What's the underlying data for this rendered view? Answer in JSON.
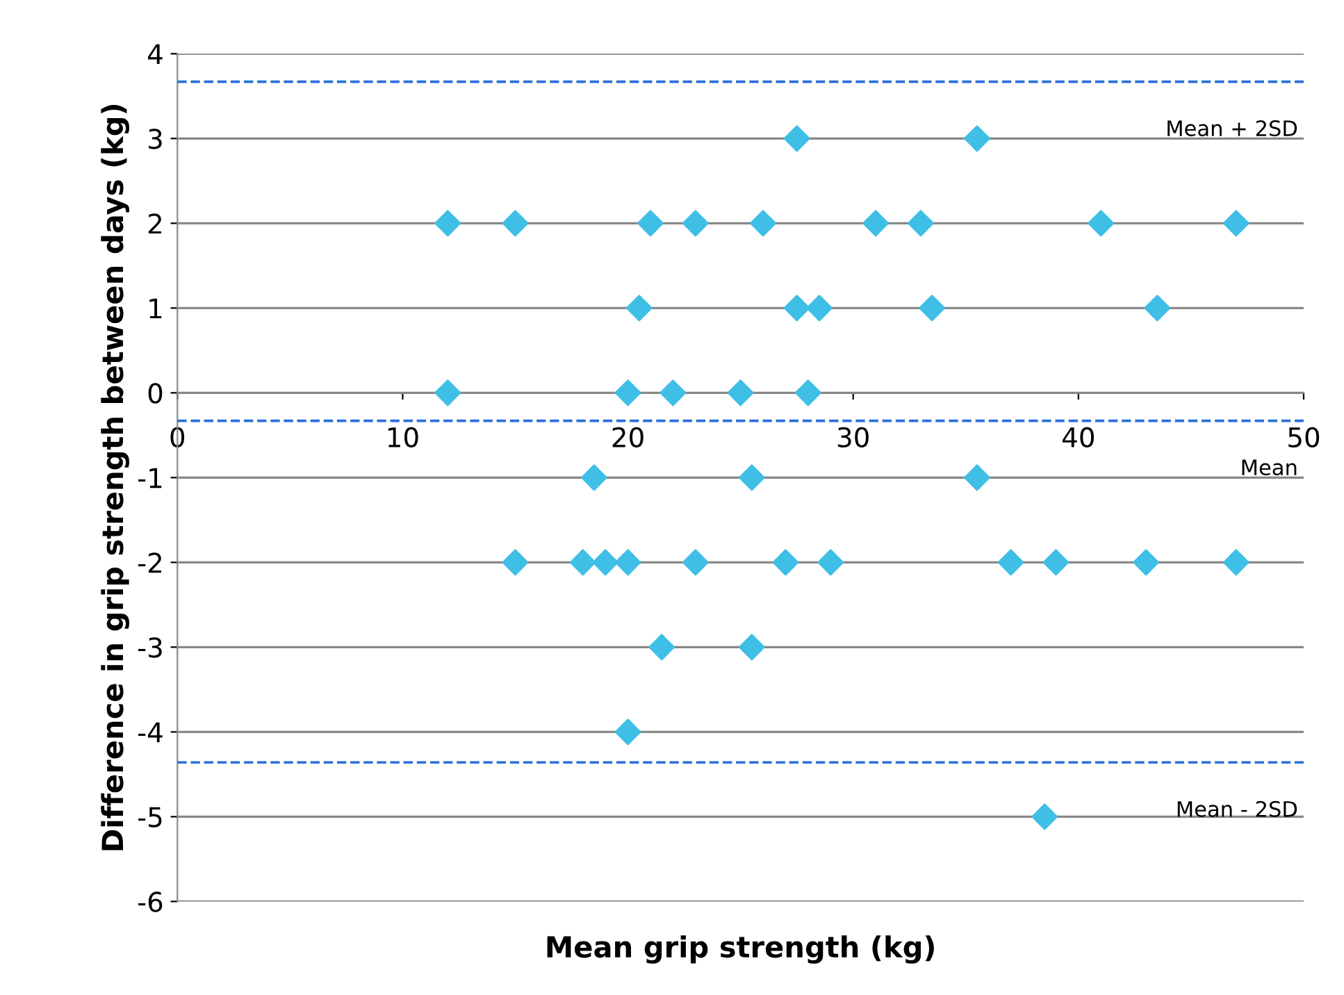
{
  "chart_data": {
    "type": "scatter",
    "xlabel": "Mean grip strength (kg)",
    "ylabel": "Difference in grip strength between days (kg)",
    "x": [
      27.5,
      35.5,
      12,
      15,
      21,
      23,
      26,
      31,
      33,
      41,
      47,
      20.5,
      27.5,
      28.5,
      33.5,
      43.5,
      12,
      20,
      22,
      25,
      28,
      18.5,
      25.5,
      35.5,
      15,
      18,
      19,
      20,
      23,
      27,
      29,
      37,
      39,
      43,
      47,
      21.5,
      25.5,
      20,
      38.5
    ],
    "series": [
      {
        "color": "#3fbfe6",
        "values": [
          3,
          3,
          2,
          2,
          2,
          2,
          2,
          2,
          2,
          2,
          2,
          1,
          1,
          1,
          1,
          1,
          0,
          0,
          0,
          0,
          0,
          -1,
          -1,
          -1,
          -2,
          -2,
          -2,
          -2,
          -2,
          -2,
          -2,
          -2,
          -2,
          -2,
          -2,
          -3,
          -3,
          -4,
          -5
        ]
      }
    ],
    "xlim": [
      0,
      50
    ],
    "xticks": [
      0,
      10,
      20,
      30,
      40,
      50
    ],
    "ylim": [
      -6,
      4
    ],
    "yticks": [
      -6,
      -5,
      -4,
      -3,
      -2,
      -1,
      0,
      1,
      2,
      3,
      4
    ],
    "grid": "y",
    "marker": "diamond",
    "ref_lines": [
      {
        "axis": "y",
        "value": 3.67,
        "label": "Mean + 2SD",
        "color": "#2a6fdb",
        "line_style": "dashed"
      },
      {
        "axis": "y",
        "value": -0.33,
        "label": "Mean",
        "color": "#2a6fdb",
        "line_style": "dashed"
      },
      {
        "axis": "y",
        "value": -4.36,
        "label": "Mean - 2SD",
        "color": "#2a6fdb",
        "line_style": "dashed"
      }
    ]
  }
}
